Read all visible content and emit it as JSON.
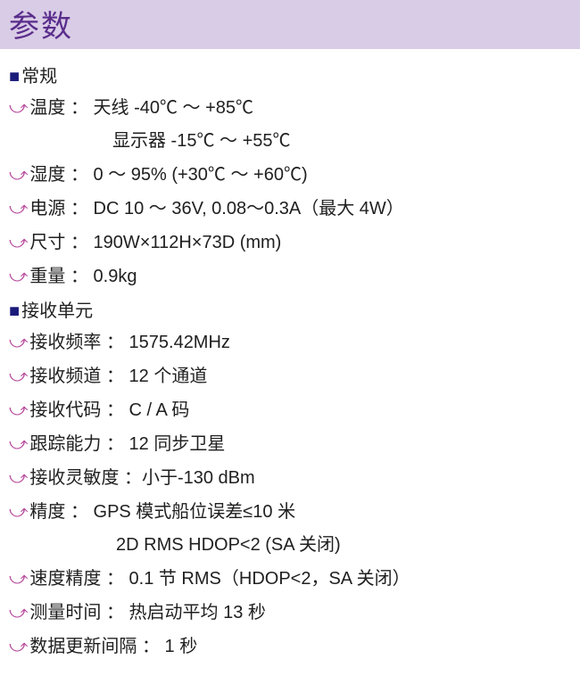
{
  "colors": {
    "header_bg": "#d9cce6",
    "header_text": "#5a2d8c",
    "square": "#1a1a7a",
    "bullet": "#b84a9c",
    "body_text": "#202020",
    "page_bg": "#ffffff"
  },
  "fonts": {
    "title_size": 34,
    "body_size": 20
  },
  "title": "参数",
  "sections": [
    {
      "header": "常规",
      "items": [
        {
          "label": "温度",
          "value": "天线 -40℃ ～ +85℃",
          "extra": "显示器 -15℃ ～ +55℃"
        },
        {
          "label": "湿度",
          "value": "0 ～ 95% (+30℃ ～ +60℃)"
        },
        {
          "label": "电源",
          "value": "DC 10 ～ 36V, 0.08～0.3A（最大 4W）"
        },
        {
          "label": "尺寸",
          "value": "190W×112H×73D (mm)"
        },
        {
          "label": "重量",
          "value": "0.9kg"
        }
      ]
    },
    {
      "header": "接收单元",
      "items": [
        {
          "label": "接收频率",
          "value": "1575.42MHz"
        },
        {
          "label": "接收频道",
          "value": "12 个通道"
        },
        {
          "label": "接收代码",
          "value": "C / A 码"
        },
        {
          "label": "跟踪能力",
          "value": "12 同步卫星"
        },
        {
          "label": "接收灵敏度",
          "value": "小于-130 dBm",
          "tight": true
        },
        {
          "label": "精度",
          "value": "GPS 模式船位误差≤10 米",
          "extra": "2D RMS HDOP<2 (SA 关闭)"
        },
        {
          "label": "速度精度",
          "value": "0.1 节 RMS（HDOP<2，SA 关闭）"
        },
        {
          "label": "测量时间",
          "value": "热启动平均 13 秒"
        },
        {
          "label": "数据更新间隔",
          "value": "1 秒"
        }
      ]
    }
  ]
}
